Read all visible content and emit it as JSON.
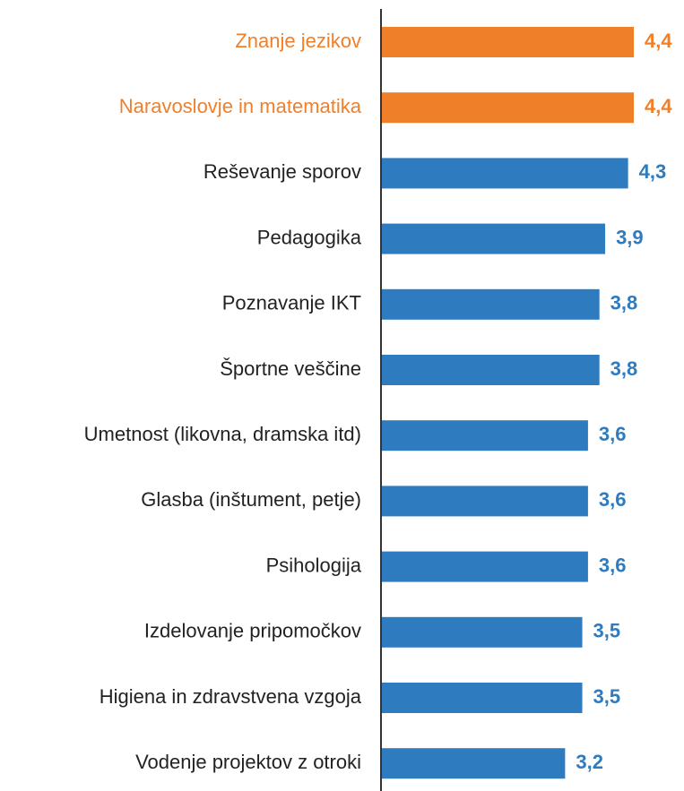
{
  "chart_data": {
    "type": "bar",
    "orientation": "horizontal",
    "categories": [
      "Znanje jezikov",
      "Naravoslovje in matematika",
      "Reševanje sporov",
      "Pedagogika",
      "Poznavanje IKT",
      "Športne veščine",
      "Umetnost (likovna, dramska itd)",
      "Glasba (inštument, petje)",
      "Psihologija",
      "Izdelovanje pripomočkov",
      "Higiena in zdravstvena vzgoja",
      "Vodenje projektov z otroki"
    ],
    "values": [
      4.4,
      4.4,
      4.3,
      3.9,
      3.8,
      3.8,
      3.6,
      3.6,
      3.6,
      3.5,
      3.5,
      3.2
    ],
    "value_labels": [
      "4,4",
      "4,4",
      "4,3",
      "3,9",
      "3,8",
      "3,8",
      "3,6",
      "3,6",
      "3,6",
      "3,5",
      "3,5",
      "3,2"
    ],
    "colors": [
      "#f07f2a",
      "#f07f2a",
      "#2e7bbf",
      "#2e7bbf",
      "#2e7bbf",
      "#2e7bbf",
      "#2e7bbf",
      "#2e7bbf",
      "#2e7bbf",
      "#2e7bbf",
      "#2e7bbf",
      "#2e7bbf"
    ]
  }
}
